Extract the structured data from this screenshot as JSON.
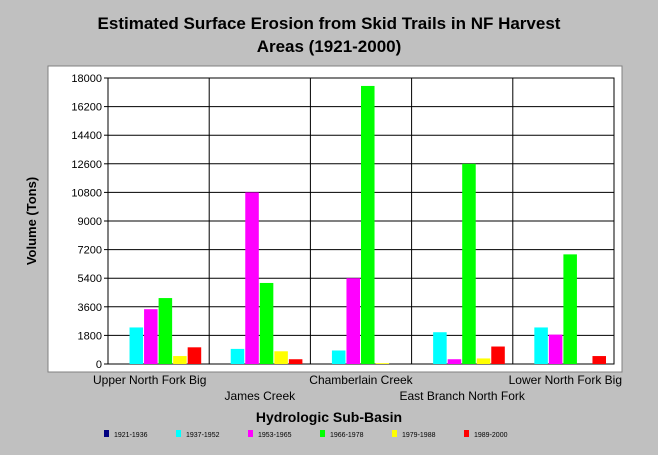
{
  "chart_data": {
    "type": "bar",
    "title_line1": "Estimated Surface Erosion from Skid Trails in NF Harvest",
    "title_line2": "Areas (1921-2000)",
    "xlabel": "Hydrologic Sub-Basin",
    "ylabel": "Volume (Tons)",
    "ylim": [
      0,
      18000
    ],
    "yticks": [
      "0",
      "1800",
      "3600",
      "5400",
      "7200",
      "9000",
      "10800",
      "12600",
      "14400",
      "16200",
      "18000"
    ],
    "grid": "horizontal and vertical",
    "legend_position": "bottom",
    "categories": [
      "Upper North Fork Big",
      "James Creek",
      "Chamberlain Creek",
      "East Branch North Fork",
      "Lower North Fork Big"
    ],
    "series": [
      {
        "name": "1921-1936",
        "color": "#000080",
        "values": [
          0,
          0,
          0,
          0,
          0
        ]
      },
      {
        "name": "1937-1952",
        "color": "#00ffff",
        "values": [
          2300,
          950,
          850,
          2000,
          2300
        ]
      },
      {
        "name": "1953-1965",
        "color": "#ff00ff",
        "values": [
          3450,
          10800,
          5400,
          300,
          1850
        ]
      },
      {
        "name": "1966-1978",
        "color": "#00ff00",
        "values": [
          4150,
          5100,
          17500,
          12600,
          6900
        ]
      },
      {
        "name": "1979-1988",
        "color": "#ffff00",
        "values": [
          500,
          800,
          50,
          350,
          0
        ]
      },
      {
        "name": "1989-2000",
        "color": "#ff0000",
        "values": [
          1050,
          300,
          0,
          1100,
          500
        ]
      }
    ]
  }
}
